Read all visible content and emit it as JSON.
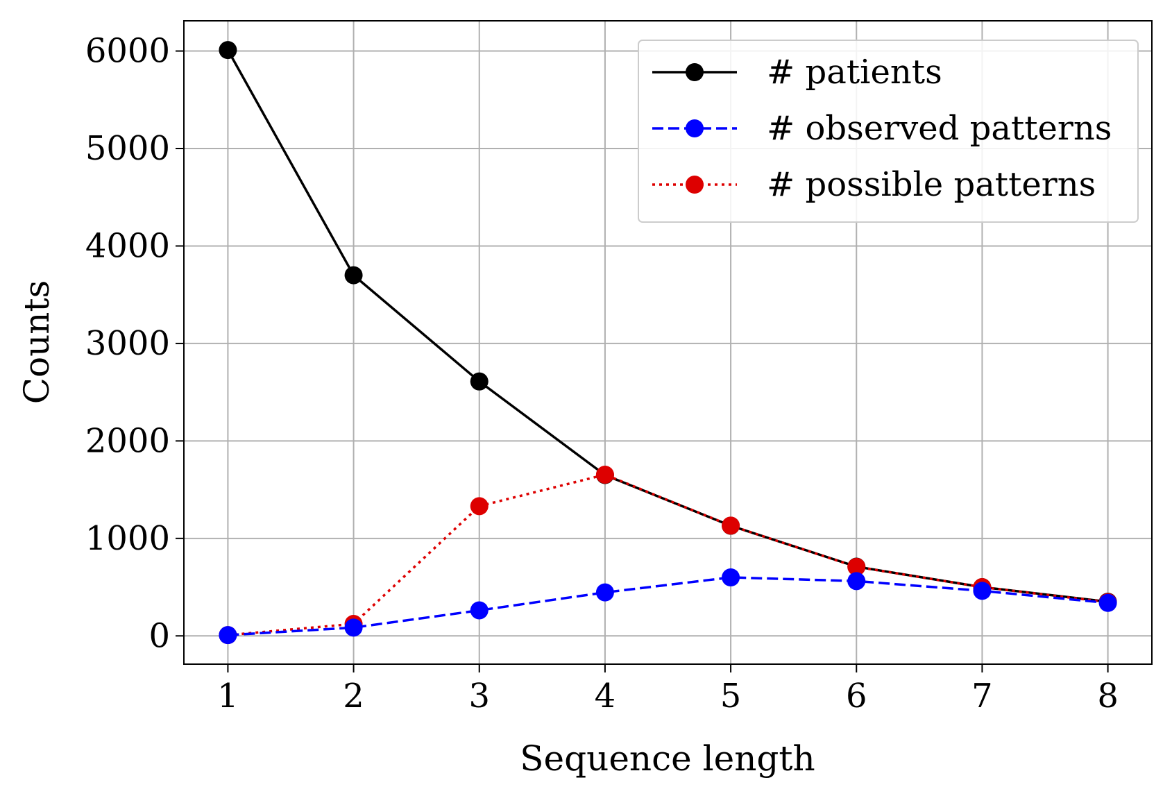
{
  "chart_data": {
    "type": "line",
    "title": "",
    "xlabel": "Sequence length",
    "ylabel": "Counts",
    "x": [
      1,
      2,
      3,
      4,
      5,
      6,
      7,
      8
    ],
    "xlim": [
      0.65,
      8.35
    ],
    "ylim": [
      -290,
      6310
    ],
    "xticks": [
      "1",
      "2",
      "3",
      "4",
      "5",
      "6",
      "7",
      "8"
    ],
    "yticks": [
      "0",
      "1000",
      "2000",
      "3000",
      "4000",
      "5000",
      "6000"
    ],
    "ytick_values": [
      0,
      1000,
      2000,
      3000,
      4000,
      5000,
      6000
    ],
    "grid": true,
    "legend_position": "top-right",
    "series": [
      {
        "name": "# patients",
        "color": "#000000",
        "style": "solid",
        "values": [
          6010,
          3700,
          2610,
          1650,
          1130,
          710,
          500,
          350
        ]
      },
      {
        "name": "# observed patterns",
        "color": "#0000ff",
        "style": "dashed",
        "values": [
          8,
          85,
          262,
          446,
          600,
          562,
          462,
          338
        ]
      },
      {
        "name": "# possible patterns",
        "color": "#dd0000",
        "style": "dotted",
        "values": [
          8,
          123,
          1331,
          1654,
          1131,
          708,
          500,
          346
        ]
      }
    ]
  }
}
